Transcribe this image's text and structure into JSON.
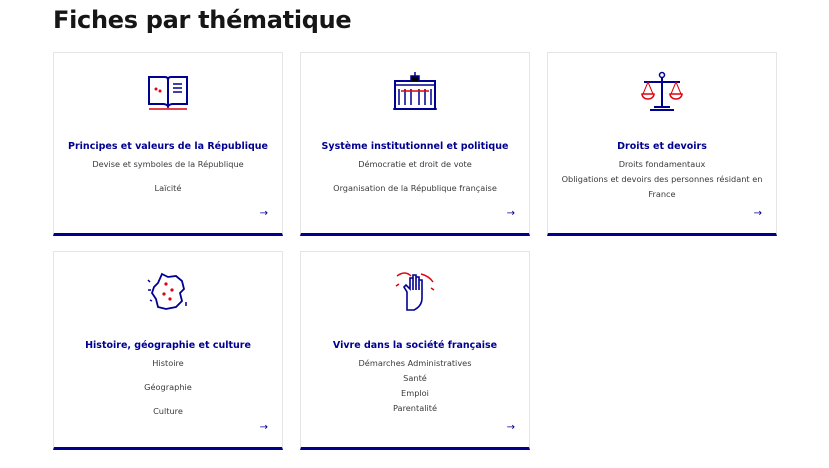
{
  "page_title": "Fiches par thématique",
  "colors": {
    "accent": "#000091",
    "red": "#e1000f"
  },
  "cards": [
    {
      "icon": "book-icon",
      "title": "Principes et valeurs de la République",
      "groups": [
        [
          "Devise et symboles de la République"
        ],
        [
          "Laïcité"
        ]
      ]
    },
    {
      "icon": "institution-building-icon",
      "title": "Système institutionnel et politique",
      "groups": [
        [
          "Démocratie et droit de vote"
        ],
        [
          "Organisation de la République française"
        ]
      ]
    },
    {
      "icon": "scales-of-justice-icon",
      "title": "Droits et devoirs",
      "groups": [
        [
          "Droits fondamentaux",
          "Obligations et devoirs des personnes résidant en France"
        ]
      ]
    },
    {
      "icon": "france-map-icon",
      "title": "Histoire, géographie et culture",
      "groups": [
        [
          "Histoire"
        ],
        [
          "Géographie"
        ],
        [
          "Culture"
        ]
      ]
    },
    {
      "icon": "raised-hand-icon",
      "title": "Vivre dans la société française",
      "groups": [
        [
          "Démarches Administratives",
          "Santé",
          "Emploi",
          "Parentalité"
        ]
      ]
    }
  ]
}
